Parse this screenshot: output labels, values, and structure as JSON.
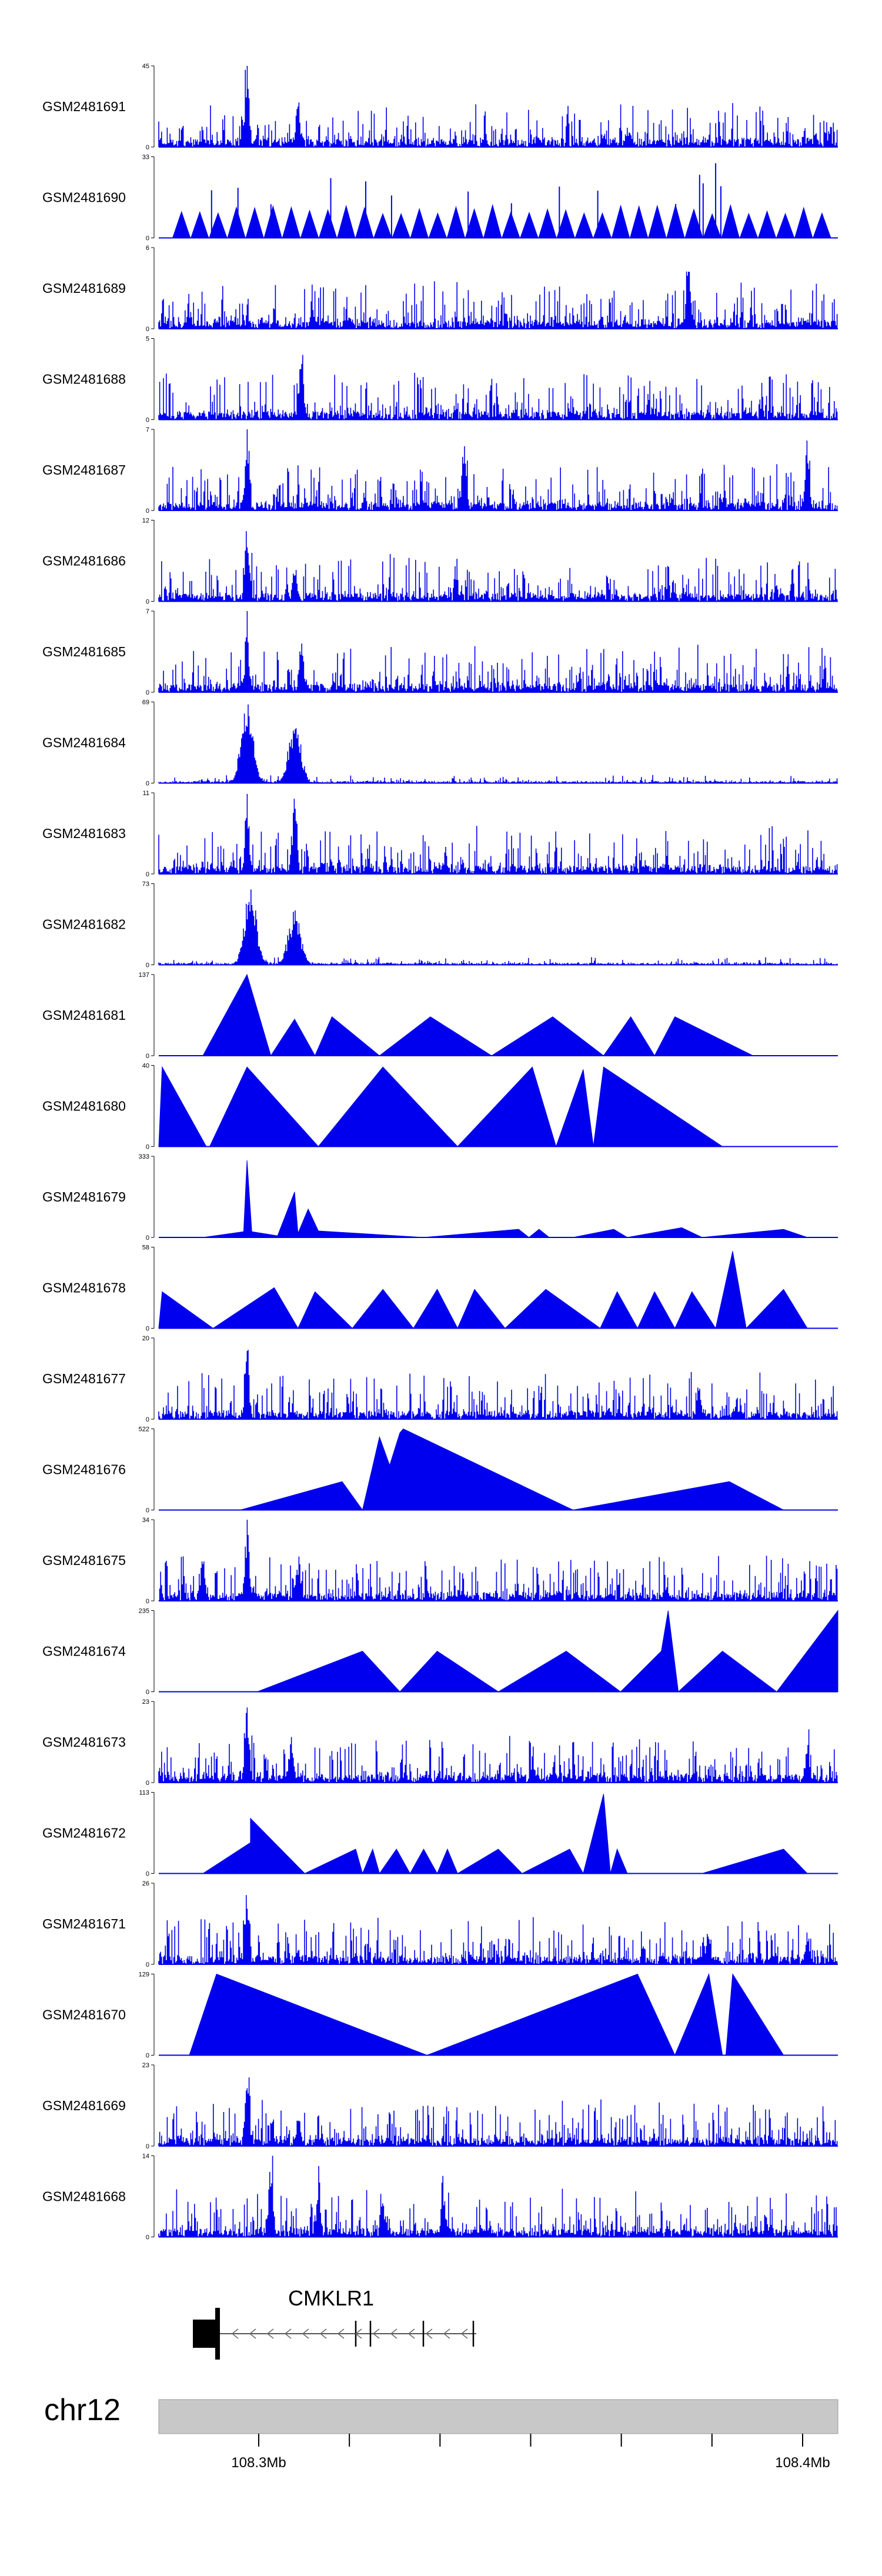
{
  "colors": {
    "signal": "#0000ee",
    "ideogram": "#c8c8c8",
    "gene": "#000000",
    "axis": "#000000"
  },
  "tracks": [
    {
      "id": "GSM2481691",
      "ymax": "45",
      "ymin": "0",
      "profile": "dense",
      "peaks": [
        [
          0.13,
          1.0
        ],
        [
          0.205,
          0.6
        ],
        [
          0.69,
          0.22
        ]
      ]
    },
    {
      "id": "GSM2481690",
      "ymax": "33",
      "ymin": "0",
      "profile": "triangles",
      "start": 0.02,
      "end": 0.99,
      "n": 36,
      "peaks": [
        [
          0.82,
          0.92
        ]
      ]
    },
    {
      "id": "GSM2481689",
      "ymax": "6",
      "ymin": "0",
      "profile": "dense",
      "peaks": [
        [
          0.78,
          0.95
        ]
      ]
    },
    {
      "id": "GSM2481688",
      "ymax": "5",
      "ymin": "0",
      "profile": "dense",
      "peaks": [
        [
          0.21,
          0.98
        ]
      ]
    },
    {
      "id": "GSM2481687",
      "ymax": "7",
      "ymin": "0",
      "profile": "dense",
      "peaks": [
        [
          0.13,
          0.95
        ],
        [
          0.45,
          0.9
        ],
        [
          0.955,
          0.95
        ]
      ]
    },
    {
      "id": "GSM2481686",
      "ymax": "12",
      "ymin": "0",
      "profile": "dense",
      "peaks": [
        [
          0.13,
          0.92
        ],
        [
          0.2,
          0.42
        ]
      ]
    },
    {
      "id": "GSM2481685",
      "ymax": "7",
      "ymin": "0",
      "profile": "dense",
      "peaks": [
        [
          0.13,
          0.8
        ],
        [
          0.21,
          0.7
        ]
      ]
    },
    {
      "id": "GSM2481684",
      "ymax": "69",
      "ymin": "0",
      "profile": "sparse",
      "peaks": [
        [
          0.13,
          1.0
        ],
        [
          0.2,
          0.78
        ]
      ]
    },
    {
      "id": "GSM2481683",
      "ymax": "11",
      "ymin": "0",
      "profile": "dense",
      "peaks": [
        [
          0.13,
          0.9
        ],
        [
          0.2,
          0.92
        ]
      ]
    },
    {
      "id": "GSM2481682",
      "ymax": "73",
      "ymin": "0",
      "profile": "sparse",
      "peaks": [
        [
          0.135,
          1.0
        ],
        [
          0.2,
          0.68
        ]
      ]
    },
    {
      "id": "GSM2481681",
      "ymax": "137",
      "ymin": "0",
      "profile": "polygon",
      "points": [
        [
          0.065,
          0
        ],
        [
          0.13,
          1.0
        ],
        [
          0.165,
          0
        ],
        [
          0.2,
          0.45
        ],
        [
          0.23,
          0
        ],
        [
          0.255,
          0.48
        ],
        [
          0.325,
          0
        ],
        [
          0.4,
          0.48
        ],
        [
          0.49,
          0
        ],
        [
          0.58,
          0.48
        ],
        [
          0.655,
          0
        ],
        [
          0.695,
          0.48
        ],
        [
          0.73,
          0
        ],
        [
          0.76,
          0.48
        ],
        [
          0.875,
          0
        ]
      ]
    },
    {
      "id": "GSM2481680",
      "ymax": "40",
      "ymin": "0",
      "profile": "polygon",
      "points": [
        [
          0.0,
          0
        ],
        [
          0.005,
          0.98
        ],
        [
          0.07,
          0
        ],
        [
          0.075,
          0.0
        ],
        [
          0.13,
          0.98
        ],
        [
          0.235,
          0
        ],
        [
          0.33,
          0.98
        ],
        [
          0.44,
          0
        ],
        [
          0.55,
          0.98
        ],
        [
          0.585,
          0
        ],
        [
          0.625,
          0.95
        ],
        [
          0.64,
          0
        ],
        [
          0.655,
          0.98
        ],
        [
          0.83,
          0
        ]
      ]
    },
    {
      "id": "GSM2481679",
      "ymax": "333",
      "ymin": "0",
      "profile": "polygon",
      "points": [
        [
          0.065,
          0
        ],
        [
          0.125,
          0.07
        ],
        [
          0.13,
          0.95
        ],
        [
          0.137,
          0.07
        ],
        [
          0.175,
          0.02
        ],
        [
          0.2,
          0.56
        ],
        [
          0.205,
          0.05
        ],
        [
          0.22,
          0.35
        ],
        [
          0.235,
          0.08
        ],
        [
          0.39,
          0
        ],
        [
          0.53,
          0.1
        ],
        [
          0.545,
          0
        ],
        [
          0.56,
          0.1
        ],
        [
          0.575,
          0
        ],
        [
          0.61,
          0
        ],
        [
          0.67,
          0.1
        ],
        [
          0.69,
          0
        ],
        [
          0.77,
          0.12
        ],
        [
          0.8,
          0
        ],
        [
          0.92,
          0.1
        ],
        [
          0.955,
          0
        ]
      ]
    },
    {
      "id": "GSM2481678",
      "ymax": "58",
      "ymin": "0",
      "profile": "polygon",
      "points": [
        [
          0.0,
          0
        ],
        [
          0.005,
          0.45
        ],
        [
          0.08,
          0
        ],
        [
          0.17,
          0.5
        ],
        [
          0.205,
          0
        ],
        [
          0.23,
          0.45
        ],
        [
          0.285,
          0
        ],
        [
          0.33,
          0.48
        ],
        [
          0.375,
          0
        ],
        [
          0.41,
          0.48
        ],
        [
          0.44,
          0
        ],
        [
          0.465,
          0.48
        ],
        [
          0.51,
          0
        ],
        [
          0.57,
          0.48
        ],
        [
          0.65,
          0
        ],
        [
          0.675,
          0.45
        ],
        [
          0.705,
          0
        ],
        [
          0.73,
          0.45
        ],
        [
          0.76,
          0
        ],
        [
          0.785,
          0.45
        ],
        [
          0.82,
          0
        ],
        [
          0.82,
          0.0
        ],
        [
          0.845,
          0.95
        ],
        [
          0.865,
          0
        ],
        [
          0.92,
          0.48
        ],
        [
          0.955,
          0
        ]
      ]
    },
    {
      "id": "GSM2481677",
      "ymax": "20",
      "ymin": "0",
      "profile": "dense",
      "peaks": [
        [
          0.13,
          0.95
        ],
        [
          0.795,
          0.35
        ]
      ]
    },
    {
      "id": "GSM2481676",
      "ymax": "522",
      "ymin": "0",
      "profile": "polygon",
      "points": [
        [
          0.12,
          0
        ],
        [
          0.27,
          0.35
        ],
        [
          0.3,
          0
        ],
        [
          0.3,
          0.0
        ],
        [
          0.325,
          0.9
        ],
        [
          0.34,
          0.55
        ],
        [
          0.355,
          0.95
        ],
        [
          0.36,
          1.0
        ],
        [
          0.61,
          0
        ],
        [
          0.84,
          0.35
        ],
        [
          0.92,
          0
        ]
      ]
    },
    {
      "id": "GSM2481675",
      "ymax": "34",
      "ymin": "0",
      "profile": "dense",
      "peaks": [
        [
          0.065,
          0.55
        ],
        [
          0.13,
          1.0
        ],
        [
          0.205,
          0.55
        ]
      ]
    },
    {
      "id": "GSM2481674",
      "ymax": "235",
      "ymin": "0",
      "profile": "polygon",
      "points": [
        [
          0.145,
          0
        ],
        [
          0.3,
          0.5
        ],
        [
          0.355,
          0
        ],
        [
          0.41,
          0.5
        ],
        [
          0.5,
          0
        ],
        [
          0.6,
          0.5
        ],
        [
          0.68,
          0
        ],
        [
          0.74,
          0.5
        ],
        [
          0.75,
          1.0
        ],
        [
          0.765,
          0
        ],
        [
          0.83,
          0.5
        ],
        [
          0.91,
          0
        ],
        [
          1.0,
          1.0
        ],
        [
          1.0,
          0
        ]
      ]
    },
    {
      "id": "GSM2481673",
      "ymax": "23",
      "ymin": "0",
      "profile": "dense",
      "peaks": [
        [
          0.13,
          1.0
        ],
        [
          0.195,
          0.55
        ],
        [
          0.955,
          0.38
        ]
      ]
    },
    {
      "id": "GSM2481672",
      "ymax": "113",
      "ymin": "0",
      "profile": "polygon",
      "points": [
        [
          0.065,
          0
        ],
        [
          0.135,
          0.38
        ],
        [
          0.135,
          0.68
        ],
        [
          0.215,
          0
        ],
        [
          0.29,
          0.3
        ],
        [
          0.3,
          0
        ],
        [
          0.315,
          0.3
        ],
        [
          0.325,
          0
        ],
        [
          0.35,
          0.3
        ],
        [
          0.37,
          0
        ],
        [
          0.39,
          0.3
        ],
        [
          0.41,
          0
        ],
        [
          0.425,
          0.3
        ],
        [
          0.44,
          0
        ],
        [
          0.5,
          0.3
        ],
        [
          0.535,
          0
        ],
        [
          0.605,
          0.3
        ],
        [
          0.625,
          0
        ],
        [
          0.655,
          0.98
        ],
        [
          0.665,
          0.0
        ],
        [
          0.675,
          0.3
        ],
        [
          0.69,
          0
        ],
        [
          0.8,
          0.0
        ],
        [
          0.92,
          0.3
        ],
        [
          0.955,
          0
        ]
      ]
    },
    {
      "id": "GSM2481671",
      "ymax": "26",
      "ymin": "0",
      "profile": "dense",
      "peaks": [
        [
          0.13,
          1.0
        ],
        [
          0.81,
          0.35
        ],
        [
          0.955,
          0.32
        ]
      ]
    },
    {
      "id": "GSM2481670",
      "ymax": "129",
      "ymin": "0",
      "profile": "polygon",
      "points": [
        [
          0.045,
          0
        ],
        [
          0.085,
          1.0
        ],
        [
          0.395,
          0
        ],
        [
          0.705,
          1.0
        ],
        [
          0.76,
          0
        ],
        [
          0.81,
          1.0
        ],
        [
          0.83,
          0
        ],
        [
          0.835,
          0.0
        ],
        [
          0.845,
          1.0
        ],
        [
          0.92,
          0
        ]
      ]
    },
    {
      "id": "GSM2481669",
      "ymax": "23",
      "ymin": "0",
      "profile": "dense",
      "peaks": [
        [
          0.13,
          1.0
        ],
        [
          0.205,
          0.3
        ]
      ]
    },
    {
      "id": "GSM2481668",
      "ymax": "14",
      "ymin": "0",
      "profile": "dense",
      "peaks": [
        [
          0.165,
          1.0
        ],
        [
          0.235,
          0.62
        ],
        [
          0.33,
          0.48
        ],
        [
          0.42,
          0.5
        ]
      ]
    }
  ],
  "gene": {
    "name": "CMKLR1",
    "strand": "-"
  },
  "genome_axis": {
    "chromosome": "chr12",
    "ticks": [
      {
        "label": "108.3Mb",
        "show_label": true
      },
      {
        "label": "",
        "show_label": false
      },
      {
        "label": "",
        "show_label": false
      },
      {
        "label": "",
        "show_label": false
      },
      {
        "label": "",
        "show_label": false
      },
      {
        "label": "",
        "show_label": false
      },
      {
        "label": "108.4Mb",
        "show_label": true
      }
    ]
  }
}
